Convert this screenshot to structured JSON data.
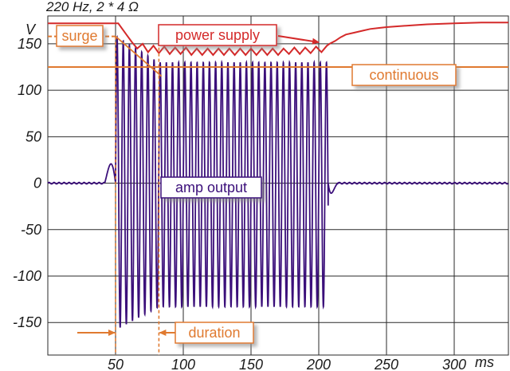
{
  "chart_data": {
    "type": "line",
    "title": "220 Hz,  2 * 4 Ω",
    "xlabel": "ms",
    "ylabel": "V",
    "xlim": [
      0,
      340
    ],
    "ylim": [
      -185,
      180
    ],
    "grid": true,
    "x_ticks": [
      50,
      100,
      150,
      200,
      250,
      300
    ],
    "y_ticks": [
      150,
      100,
      50,
      0,
      -50,
      -100,
      -150
    ],
    "series": [
      {
        "name": "power supply",
        "color": "#d42a2a",
        "x": [
          0,
          52,
          58,
          62,
          66,
          70,
          74,
          78,
          82,
          86,
          90,
          94,
          98,
          102,
          106,
          110,
          114,
          118,
          122,
          126,
          130,
          134,
          138,
          142,
          146,
          150,
          154,
          158,
          162,
          166,
          170,
          174,
          178,
          182,
          186,
          190,
          194,
          198,
          202,
          206,
          208,
          212,
          216,
          220,
          226,
          232,
          238,
          244,
          250,
          260,
          270,
          280,
          300,
          320,
          340
        ],
        "y": [
          172,
          172,
          160,
          152,
          145,
          150,
          141,
          148,
          140,
          147,
          139,
          146,
          139,
          146,
          138,
          145,
          138,
          145,
          138,
          145,
          138,
          145,
          138,
          145,
          138,
          145,
          138,
          145,
          138,
          145,
          138,
          145,
          139,
          146,
          139,
          146,
          140,
          147,
          141,
          148,
          150,
          153,
          157,
          160,
          162,
          164,
          166,
          167,
          168,
          169,
          170,
          171,
          172,
          173,
          173
        ]
      },
      {
        "name": "amp output",
        "color": "#3b0f7a",
        "envelope": {
          "frequency_hz": 220,
          "burst_start_ms": 50,
          "burst_end_ms": 207,
          "surge_peak_v": 158,
          "sustained_positive_v": 130,
          "sustained_negative_v": -133,
          "baseline_v": 0
        }
      }
    ],
    "reference_lines": [
      {
        "name": "surge",
        "value": 158,
        "range_ms": [
          0,
          50
        ],
        "style": "dashed",
        "color": "#e07a30"
      },
      {
        "name": "continuous",
        "value": 125,
        "range_ms": [
          0,
          340
        ],
        "style": "solid",
        "color": "#e07a30"
      }
    ],
    "markers": [
      {
        "name": "duration",
        "from_ms": 50,
        "to_ms": 82
      }
    ],
    "annotations": [
      {
        "text": "surge",
        "color": "#e07a30"
      },
      {
        "text": "power supply",
        "color": "#d42a2a"
      },
      {
        "text": "continuous",
        "color": "#e07a30"
      },
      {
        "text": "amp output",
        "color": "#3b0f7a"
      },
      {
        "text": "duration",
        "color": "#e07a30"
      }
    ]
  }
}
